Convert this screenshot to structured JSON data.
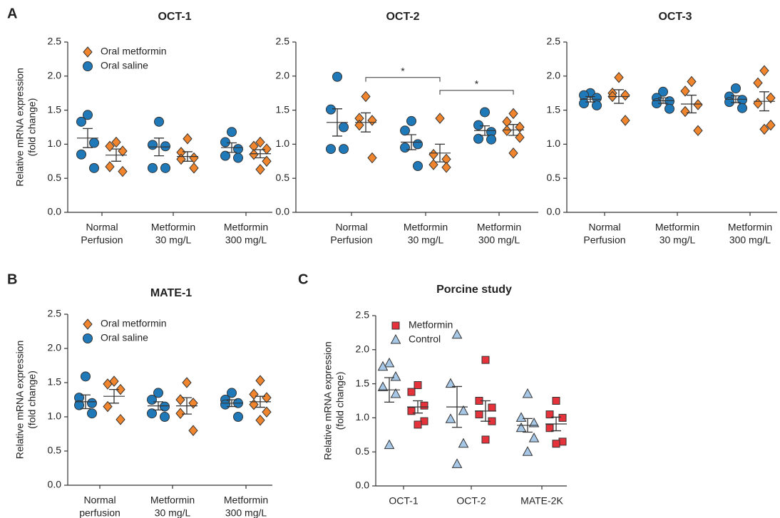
{
  "chart_data": [
    {
      "type": "dot",
      "panel_label": "A",
      "title": "OCT-1",
      "ylabel": [
        "Relative mRNA expression",
        "(fold change)"
      ],
      "categories": [
        [
          "Normal",
          "Perfusion"
        ],
        [
          "Metformin",
          "30 mg/L"
        ],
        [
          "Metformin",
          "300 mg/L"
        ]
      ],
      "ylim": [
        0,
        2.5
      ],
      "yticks": [
        {
          "value": 0,
          "label": "0.0"
        },
        0.5,
        {
          "value": 1,
          "label": "1.0"
        },
        1.5,
        {
          "value": 2,
          "label": "2.0"
        },
        2.5
      ],
      "legend": "top-left",
      "series": [
        {
          "name": "Oral saline",
          "color": "#1f78b8",
          "marker": "circle",
          "values": [
            [
              1.43,
              1.33,
              1.02,
              0.85,
              0.65
            ],
            [
              1.33,
              0.99,
              0.97,
              0.65,
              0.65
            ],
            [
              1.18,
              1.03,
              0.93,
              0.83,
              0.8
            ]
          ],
          "mean": [
            1.09,
            0.96,
            0.95
          ],
          "sem": [
            0.14,
            0.13,
            0.07
          ]
        },
        {
          "name": "Oral metformin",
          "color": "#f0852d",
          "marker": "diamond",
          "values": [
            [
              1.03,
              0.97,
              0.9,
              0.67,
              0.6
            ],
            [
              1.08,
              0.88,
              0.8,
              0.78,
              0.65
            ],
            [
              1.03,
              0.97,
              0.93,
              0.85,
              0.75,
              0.63
            ]
          ],
          "mean": [
            0.84,
            0.82,
            0.86
          ],
          "sem": [
            0.09,
            0.07,
            0.06
          ]
        }
      ]
    },
    {
      "type": "dot",
      "title": "OCT-2",
      "categories": [
        [
          "Normal",
          "Perfusion"
        ],
        [
          "Metformin",
          "30 mg/L"
        ],
        [
          "Metformin",
          "300 mg/L"
        ]
      ],
      "ylim": [
        0,
        2.5
      ],
      "yticks": [
        {
          "value": 0,
          "label": "0.0"
        },
        0.5,
        {
          "value": 1,
          "label": "1.0"
        },
        1.5,
        {
          "value": 2,
          "label": "2.0"
        },
        2.5
      ],
      "series": [
        {
          "name": "Oral saline",
          "color": "#1f78b8",
          "marker": "circle",
          "values": [
            [
              1.99,
              1.51,
              1.25,
              0.93,
              0.93
            ],
            [
              1.34,
              1.2,
              1.0,
              0.95,
              0.68
            ],
            [
              1.47,
              1.28,
              1.18,
              1.08,
              1.07
            ]
          ],
          "mean": [
            1.32,
            1.03,
            1.2
          ],
          "sem": [
            0.2,
            0.11,
            0.07
          ]
        },
        {
          "name": "Oral metformin",
          "color": "#f0852d",
          "marker": "diamond",
          "values": [
            [
              1.7,
              1.38,
              1.35,
              1.28,
              0.8
            ],
            [
              1.38,
              0.85,
              0.78,
              0.7,
              0.66
            ],
            [
              1.45,
              1.33,
              1.25,
              1.2,
              1.1,
              0.87
            ]
          ],
          "mean": [
            1.32,
            0.87,
            1.21
          ],
          "sem": [
            0.14,
            0.13,
            0.08
          ]
        }
      ],
      "annotations": [
        {
          "text": "*",
          "y": 1.98,
          "from": [
            1,
            0
          ],
          "to": [
            1,
            1
          ]
        },
        {
          "text": "*",
          "y": 1.79,
          "from": [
            1,
            1
          ],
          "to": [
            1,
            2
          ]
        }
      ]
    },
    {
      "type": "dot",
      "title": "OCT-3",
      "categories": [
        [
          "Normal",
          "Perfusion"
        ],
        [
          "Metformin",
          "30 mg/L"
        ],
        [
          "Metformin",
          "300 mg/L"
        ]
      ],
      "ylim": [
        0,
        2.5
      ],
      "yticks": [
        {
          "value": 0,
          "label": "0.0"
        },
        0.5,
        {
          "value": 1,
          "label": "1.0"
        },
        1.5,
        {
          "value": 2,
          "label": "2.0"
        },
        2.5
      ],
      "series": [
        {
          "name": "Oral saline",
          "color": "#1f78b8",
          "marker": "circle",
          "values": [
            [
              1.75,
              1.72,
              1.68,
              1.6,
              1.57
            ],
            [
              1.77,
              1.68,
              1.63,
              1.6,
              1.52
            ],
            [
              1.82,
              1.7,
              1.65,
              1.62,
              1.53
            ]
          ],
          "mean": [
            1.66,
            1.64,
            1.66
          ],
          "sem": [
            0.04,
            0.04,
            0.05
          ]
        },
        {
          "name": "Oral metformin",
          "color": "#f0852d",
          "marker": "diamond",
          "values": [
            [
              1.98,
              1.75,
              1.72,
              1.7,
              1.35
            ],
            [
              1.92,
              1.78,
              1.58,
              1.48,
              1.2
            ],
            [
              2.08,
              1.9,
              1.68,
              1.6,
              1.28,
              1.22
            ]
          ],
          "mean": [
            1.7,
            1.59,
            1.63
          ],
          "sem": [
            0.1,
            0.13,
            0.14
          ]
        }
      ]
    },
    {
      "type": "dot",
      "panel_label": "B",
      "title": "MATE-1",
      "ylabel": [
        "Relative mRNA expression",
        "(fold change)"
      ],
      "categories": [
        [
          "Normal",
          "perfusion"
        ],
        [
          "Metformin",
          "30 mg/L"
        ],
        [
          "Metformin",
          "300 mg/L"
        ]
      ],
      "ylim": [
        0,
        2.5
      ],
      "yticks": [
        {
          "value": 0,
          "label": "0.0"
        },
        0.5,
        {
          "value": 1,
          "label": "1.0"
        },
        1.5,
        {
          "value": 2,
          "label": "2.0"
        },
        2.5
      ],
      "legend": "top-left",
      "series": [
        {
          "name": "Oral saline",
          "color": "#1f78b8",
          "marker": "circle",
          "values": [
            [
              1.59,
              1.28,
              1.2,
              1.17,
              1.05
            ],
            [
              1.35,
              1.25,
              1.15,
              1.05,
              1.0
            ],
            [
              1.35,
              1.25,
              1.2,
              1.18,
              1.0
            ]
          ],
          "mean": [
            1.22,
            1.16,
            1.2
          ],
          "sem": [
            0.1,
            0.06,
            0.05
          ]
        },
        {
          "name": "Oral metformin",
          "color": "#f0852d",
          "marker": "diamond",
          "values": [
            [
              1.52,
              1.48,
              1.4,
              1.15,
              0.96
            ],
            [
              1.5,
              1.25,
              1.2,
              1.05,
              0.8
            ],
            [
              1.53,
              1.33,
              1.28,
              1.18,
              1.07,
              0.95
            ]
          ],
          "mean": [
            1.3,
            1.16,
            1.22
          ],
          "sem": [
            0.1,
            0.12,
            0.08
          ]
        }
      ]
    },
    {
      "type": "dot",
      "panel_label": "C",
      "title": "Porcine study",
      "ylabel": [
        "Relative mRNA expression",
        "(fold change)"
      ],
      "categories": [
        [
          "OCT-1"
        ],
        [
          "OCT-2"
        ],
        [
          "MATE-2K"
        ]
      ],
      "ylim": [
        0,
        2.5
      ],
      "yticks": [
        {
          "value": 0,
          "label": "0.0"
        },
        0.5,
        {
          "value": 1,
          "label": "1.0"
        },
        1.5,
        {
          "value": 2,
          "label": "2.0"
        },
        2.5
      ],
      "legend": "top-left",
      "series": [
        {
          "name": "Control",
          "color": "#a7c7e7",
          "marker": "triangle",
          "values": [
            [
              1.8,
              1.75,
              1.6,
              1.45,
              1.35,
              0.6
            ],
            [
              2.22,
              1.5,
              1.1,
              0.98,
              0.62,
              0.32
            ],
            [
              1.35,
              1.0,
              0.92,
              0.85,
              0.7,
              0.5
            ]
          ],
          "mean": [
            1.41,
            1.16,
            0.89
          ],
          "sem": [
            0.18,
            0.3,
            0.1
          ]
        },
        {
          "name": "Metformin",
          "color": "#e5323b",
          "marker": "square",
          "values": [
            [
              1.48,
              1.38,
              1.18,
              1.1,
              0.95,
              0.9
            ],
            [
              1.85,
              1.25,
              1.15,
              1.05,
              0.95,
              0.68
            ],
            [
              1.25,
              1.05,
              1.0,
              0.85,
              0.65,
              0.62
            ]
          ],
          "mean": [
            1.16,
            1.1,
            0.91
          ],
          "sem": [
            0.09,
            0.15,
            0.1
          ]
        }
      ]
    }
  ]
}
